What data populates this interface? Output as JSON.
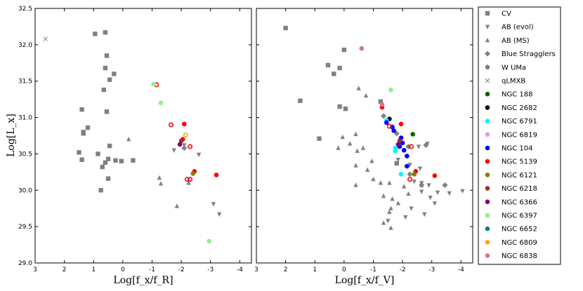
{
  "chart_data": {
    "type": "scatter",
    "ylabel": "Log[L_x]",
    "ylim": [
      29.0,
      32.5
    ],
    "yticks": [
      "29.0",
      "29.5",
      "30.0",
      "30.5",
      "31.0",
      "31.5",
      "32.0",
      "32.5"
    ],
    "legend_position": "right",
    "panels": [
      {
        "id": "left",
        "xlabel": "Log[f_x/f_R]",
        "xlim": [
          3,
          -4.4
        ],
        "xticks": [
          "3",
          "2",
          "1",
          "0",
          "-1",
          "-2",
          "-3",
          "-4"
        ],
        "series": [
          {
            "name": "CV",
            "points": [
              [
                0.95,
                32.15
              ],
              [
                0.6,
                32.17
              ],
              [
                0.55,
                31.85
              ],
              [
                0.6,
                31.68
              ],
              [
                0.3,
                31.6
              ],
              [
                0.45,
                31.52
              ],
              [
                0.65,
                31.38
              ],
              [
                1.4,
                31.11
              ],
              [
                0.55,
                31.08
              ],
              [
                1.2,
                30.86
              ],
              [
                1.35,
                30.8
              ],
              [
                1.35,
                30.78
              ],
              [
                0.45,
                30.61
              ],
              [
                1.5,
                30.52
              ],
              [
                0.85,
                30.5
              ],
              [
                1.4,
                30.42
              ],
              [
                0.5,
                30.43
              ],
              [
                0.6,
                30.38
              ],
              [
                0.7,
                30.32
              ],
              [
                0.25,
                30.41
              ],
              [
                0.05,
                30.4
              ],
              [
                -0.35,
                30.41
              ],
              [
                0.5,
                30.16
              ],
              [
                0.75,
                30.0
              ]
            ]
          },
          {
            "name": "AB (evol)",
            "points": [
              [
                -1.75,
                30.55
              ],
              [
                -2.1,
                30.62
              ],
              [
                -2.6,
                30.49
              ],
              [
                -3.1,
                29.81
              ],
              [
                -3.3,
                29.67
              ]
            ]
          },
          {
            "name": "AB (MS)",
            "points": [
              [
                -0.2,
                30.7
              ],
              [
                -1.25,
                30.17
              ],
              [
                -1.3,
                30.09
              ],
              [
                -1.85,
                29.78
              ],
              [
                -2.25,
                30.1
              ]
            ]
          },
          {
            "name": "Blue Stragglers",
            "points": [
              [
                -2.1,
                30.58
              ]
            ]
          },
          {
            "name": "W UMa",
            "points": []
          },
          {
            "name": "qLMXB",
            "points": [
              [
                2.65,
                32.08
              ]
            ]
          },
          {
            "name": "NGC 188",
            "points": []
          },
          {
            "name": "NGC 2682",
            "points": []
          },
          {
            "name": "NGC 6791",
            "points": []
          },
          {
            "name": "NGC 6819",
            "points": []
          },
          {
            "name": "NGC 104",
            "points": []
          },
          {
            "name": "NGC 5139",
            "points": [
              [
                -1.15,
                31.45
              ],
              [
                -1.65,
                30.9
              ],
              [
                -2.1,
                30.91
              ],
              [
                -2.05,
                30.7
              ],
              [
                -2.3,
                30.6
              ],
              [
                -2.45,
                30.26
              ],
              [
                -2.2,
                30.15
              ],
              [
                -2.3,
                30.15
              ],
              [
                -3.2,
                30.21
              ]
            ],
            "hollow": [
              true,
              true,
              false,
              false,
              true,
              false,
              true,
              true,
              false
            ]
          },
          {
            "name": "NGC 6121",
            "points": [
              [
                -2.4,
                30.23
              ]
            ]
          },
          {
            "name": "NGC 6218",
            "points": [
              [
                -2.0,
                30.68
              ]
            ]
          },
          {
            "name": "NGC 6366",
            "points": [
              [
                -1.95,
                30.63
              ]
            ]
          },
          {
            "name": "NGC 6397",
            "points": [
              [
                -1.05,
                31.46
              ],
              [
                -1.3,
                31.2
              ],
              [
                -2.95,
                29.3
              ]
            ]
          },
          {
            "name": "NGC 6652",
            "points": []
          },
          {
            "name": "NGC 6809",
            "points": [
              [
                -2.15,
                30.76
              ]
            ],
            "hollow": [
              true
            ]
          },
          {
            "name": "NGC 6838",
            "points": []
          }
        ]
      },
      {
        "id": "right",
        "xlabel": "Log[f_x/f_V]",
        "xlim": [
          3,
          -4.4
        ],
        "xticks": [
          "3",
          "2",
          "1",
          "0",
          "-1",
          "-2",
          "-3",
          "-4"
        ],
        "series": [
          {
            "name": "CV",
            "points": [
              [
                2.0,
                32.23
              ],
              [
                0.0,
                31.93
              ],
              [
                0.55,
                31.72
              ],
              [
                0.15,
                31.68
              ],
              [
                0.35,
                31.6
              ],
              [
                1.5,
                31.23
              ],
              [
                -1.25,
                31.22
              ],
              [
                0.15,
                31.15
              ],
              [
                -0.05,
                31.12
              ],
              [
                0.85,
                30.71
              ],
              [
                -1.8,
                30.37
              ]
            ]
          },
          {
            "name": "AB (evol)",
            "points": [
              [
                -1.85,
                30.42
              ],
              [
                -2.25,
                30.35
              ],
              [
                -2.6,
                30.3
              ],
              [
                -2.4,
                30.12
              ],
              [
                -2.65,
                30.1
              ],
              [
                -2.9,
                30.07
              ],
              [
                -3.2,
                29.97
              ],
              [
                -3.6,
                29.96
              ],
              [
                -4.05,
                29.99
              ],
              [
                -2.65,
                29.98
              ],
              [
                -2.95,
                29.9
              ],
              [
                -3.1,
                29.82
              ],
              [
                -2.3,
                29.75
              ],
              [
                -2.75,
                29.67
              ],
              [
                -2.1,
                29.63
              ],
              [
                -1.5,
                29.58
              ],
              [
                -2.85,
                30.64
              ],
              [
                -2.55,
                30.6
              ]
            ]
          },
          {
            "name": "AB (MS)",
            "points": [
              [
                -0.5,
                31.4
              ],
              [
                -0.75,
                31.3
              ],
              [
                -0.4,
                30.77
              ],
              [
                0.05,
                30.73
              ],
              [
                0.2,
                30.58
              ],
              [
                -0.2,
                30.64
              ],
              [
                -0.45,
                30.54
              ],
              [
                -0.65,
                30.58
              ],
              [
                -0.4,
                30.34
              ],
              [
                -0.95,
                30.4
              ],
              [
                -0.8,
                30.28
              ],
              [
                -0.4,
                30.07
              ],
              [
                -1.0,
                30.15
              ],
              [
                -1.25,
                30.1
              ],
              [
                -1.55,
                30.1
              ],
              [
                -2.05,
                30.05
              ],
              [
                -1.35,
                29.92
              ],
              [
                -1.65,
                29.88
              ],
              [
                -2.2,
                29.95
              ],
              [
                -1.85,
                29.82
              ],
              [
                -1.55,
                29.7
              ],
              [
                -1.6,
                29.75
              ],
              [
                -1.35,
                29.55
              ],
              [
                -1.6,
                29.48
              ]
            ]
          },
          {
            "name": "Blue Stragglers",
            "points": [
              [
                -2.8,
                30.62
              ],
              [
                -2.2,
                30.6
              ],
              [
                -3.45,
                30.07
              ],
              [
                -2.25,
                30.22
              ],
              [
                -1.35,
                31.02
              ],
              [
                -1.8,
                30.78
              ]
            ]
          },
          {
            "name": "W UMa",
            "points": [
              [
                -2.65,
                30.07
              ]
            ]
          },
          {
            "name": "qLMXB",
            "points": []
          },
          {
            "name": "NGC 188",
            "points": [
              [
                -2.35,
                30.77
              ]
            ]
          },
          {
            "name": "NGC 2682",
            "points": [
              [
                -1.55,
                30.98
              ]
            ]
          },
          {
            "name": "NGC 6791",
            "points": [
              [
                -1.45,
                30.96
              ],
              [
                -1.75,
                30.58
              ],
              [
                -1.75,
                30.54
              ],
              [
                -1.95,
                30.22
              ]
            ]
          },
          {
            "name": "NGC 6819",
            "points": []
          },
          {
            "name": "NGC 104",
            "points": [
              [
                -1.65,
                30.87
              ],
              [
                -1.7,
                30.82
              ],
              [
                -1.95,
                30.72
              ],
              [
                -2.0,
                30.65
              ],
              [
                -1.9,
                30.6
              ],
              [
                -2.05,
                30.55
              ],
              [
                -2.15,
                30.47
              ],
              [
                -2.15,
                30.33
              ],
              [
                -1.45,
                30.93
              ]
            ]
          },
          {
            "name": "NGC 5139",
            "points": [
              [
                -1.95,
                30.91
              ],
              [
                -1.3,
                31.14
              ],
              [
                -1.55,
                30.88
              ],
              [
                -2.3,
                30.6
              ],
              [
                -2.45,
                30.26
              ],
              [
                -2.25,
                30.15
              ],
              [
                -3.1,
                30.2
              ]
            ],
            "hollow": [
              false,
              false,
              true,
              true,
              false,
              true,
              false
            ]
          },
          {
            "name": "NGC 6121",
            "points": [
              [
                -2.4,
                30.22
              ]
            ]
          },
          {
            "name": "NGC 6218",
            "points": [
              [
                -1.9,
                30.68
              ]
            ]
          },
          {
            "name": "NGC 6366",
            "points": [
              [
                -1.85,
                30.63
              ]
            ]
          },
          {
            "name": "NGC 6397",
            "points": [
              [
                -1.6,
                31.38
              ]
            ]
          },
          {
            "name": "NGC 6652",
            "points": []
          },
          {
            "name": "NGC 6809",
            "points": []
          },
          {
            "name": "NGC 6838",
            "points": [
              [
                -0.6,
                31.95
              ],
              [
                -1.3,
                31.18
              ]
            ]
          }
        ]
      }
    ],
    "legend": [
      {
        "name": "CV",
        "marker": "square",
        "color": "#808080"
      },
      {
        "name": "AB (evol)",
        "marker": "triangle-down",
        "color": "#808080"
      },
      {
        "name": "AB (MS)",
        "marker": "triangle-up",
        "color": "#808080"
      },
      {
        "name": "Blue Stragglers",
        "marker": "diamond",
        "color": "#808080"
      },
      {
        "name": "W UMa",
        "marker": "pentagon",
        "color": "#808080"
      },
      {
        "name": "qLMXB",
        "marker": "x",
        "color": "#808080"
      },
      {
        "name": "NGC 188",
        "marker": "circle",
        "color": "#006400"
      },
      {
        "name": "NGC 2682",
        "marker": "circle",
        "color": "#000000"
      },
      {
        "name": "NGC 6791",
        "marker": "circle",
        "color": "#00f5ff"
      },
      {
        "name": "NGC 6819",
        "marker": "circle",
        "color": "#dda0dd"
      },
      {
        "name": "NGC 104",
        "marker": "circle",
        "color": "#0000ff"
      },
      {
        "name": "NGC 5139",
        "marker": "circle",
        "color": "#ff0000"
      },
      {
        "name": "NGC 6121",
        "marker": "circle",
        "color": "#808000"
      },
      {
        "name": "NGC 6218",
        "marker": "circle",
        "color": "#a52a2a"
      },
      {
        "name": "NGC 6366",
        "marker": "circle",
        "color": "#800080"
      },
      {
        "name": "NGC 6397",
        "marker": "circle",
        "color": "#90ee90"
      },
      {
        "name": "NGC 6652",
        "marker": "circle",
        "color": "#008080"
      },
      {
        "name": "NGC 6809",
        "marker": "circle",
        "color": "#ffa500"
      },
      {
        "name": "NGC 6838",
        "marker": "circle",
        "color": "#db7093"
      }
    ]
  }
}
